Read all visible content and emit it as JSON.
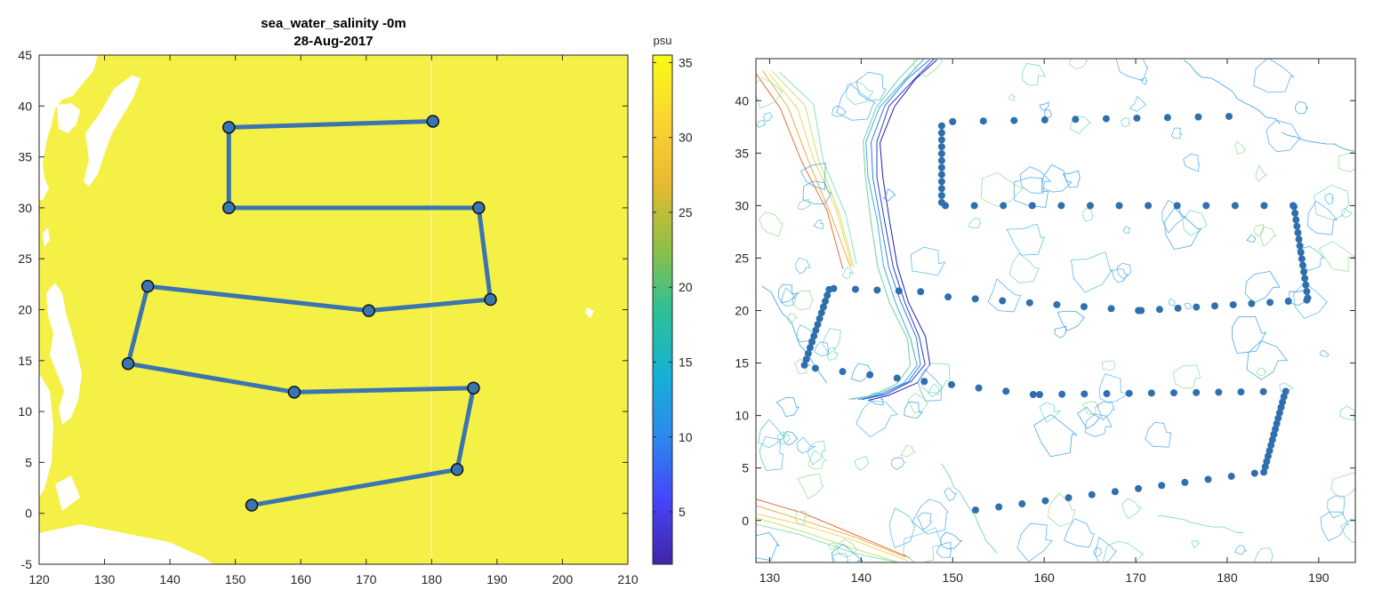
{
  "chart_data": [
    {
      "type": "line",
      "title": "sea_water_salinity -0m",
      "subtitle": "28-Aug-2017",
      "xlim": [
        120,
        210
      ],
      "ylim": [
        -5,
        45
      ],
      "xticks": [
        120,
        130,
        140,
        150,
        160,
        170,
        180,
        190,
        200,
        210
      ],
      "yticks": [
        -5,
        0,
        5,
        10,
        15,
        20,
        25,
        30,
        35,
        40,
        45
      ],
      "background_field": "salinity",
      "series": [
        {
          "color": "#3a75b0",
          "marker_color": "#3a75b0",
          "x": [
            180.2,
            149.0,
            149.0,
            187.2,
            189.0,
            170.4,
            136.6,
            133.6,
            159.0,
            186.4,
            183.9,
            152.5
          ],
          "y": [
            38.5,
            37.9,
            30.0,
            30.0,
            21.0,
            19.9,
            22.3,
            14.7,
            11.9,
            12.3,
            4.3,
            0.8
          ]
        }
      ],
      "colorbar": {
        "label": "psu",
        "range": [
          1.5,
          35.5
        ],
        "ticks": [
          5,
          10,
          15,
          20,
          25,
          30,
          35
        ],
        "colors": [
          "#3e26a8",
          "#4743f8",
          "#2c89f0",
          "#15b1d5",
          "#2ec093",
          "#92bf45",
          "#e9ba30",
          "#fbd630",
          "#f9fb15"
        ]
      },
      "land_color": "#ffffff",
      "ocean_color": "#f5f046"
    },
    {
      "type": "scatter",
      "xlim": [
        128.5,
        194
      ],
      "ylim": [
        -4,
        44
      ],
      "xticks": [
        130,
        140,
        150,
        160,
        170,
        180,
        190
      ],
      "yticks": [
        0,
        5,
        10,
        15,
        20,
        25,
        30,
        35,
        40
      ],
      "background_field": "bathymetry contours",
      "point_color": "#2f6fad",
      "segments": [
        {
          "from": [
            150,
            38.0
          ],
          "to": [
            180.2,
            38.5
          ],
          "n": 10
        },
        {
          "from": [
            148.8,
            37.6
          ],
          "to": [
            148.8,
            30.3
          ],
          "n": 12
        },
        {
          "from": [
            149.2,
            30.0
          ],
          "to": [
            187.2,
            30.0
          ],
          "n": 13
        },
        {
          "from": [
            187.3,
            29.9
          ],
          "to": [
            188.8,
            21.2
          ],
          "n": 15
        },
        {
          "from": [
            188.7,
            21.0
          ],
          "to": [
            170.6,
            20.0
          ],
          "n": 10
        },
        {
          "from": [
            170.3,
            20.0
          ],
          "to": [
            149.5,
            21.3
          ],
          "n": 8
        },
        {
          "from": [
            146.5,
            21.8
          ],
          "to": [
            137.0,
            22.1
          ],
          "n": 5
        },
        {
          "from": [
            136.5,
            22.0
          ],
          "to": [
            133.8,
            14.8
          ],
          "n": 14
        },
        {
          "from": [
            135.0,
            14.5
          ],
          "to": [
            158.8,
            12.0
          ],
          "n": 9
        },
        {
          "from": [
            159.5,
            12.0
          ],
          "to": [
            186.4,
            12.3
          ],
          "n": 12
        },
        {
          "from": [
            186.2,
            11.8
          ],
          "to": [
            184.0,
            4.6
          ],
          "n": 15
        },
        {
          "from": [
            183.0,
            4.5
          ],
          "to": [
            152.5,
            1.0
          ],
          "n": 13
        }
      ]
    }
  ]
}
